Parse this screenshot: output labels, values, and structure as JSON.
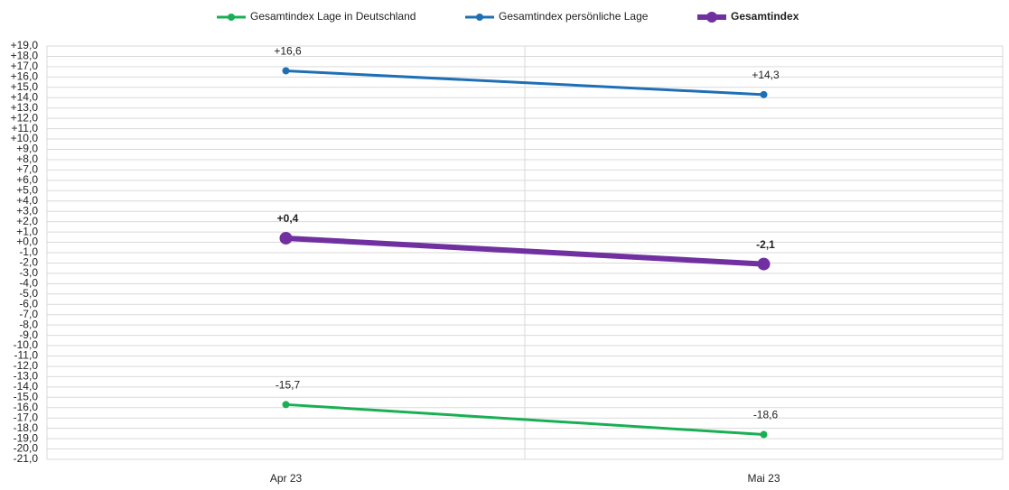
{
  "chart_data": {
    "type": "line",
    "categories": [
      "Apr 23",
      "Mai 23"
    ],
    "series": [
      {
        "name": "Gesamtindex Lage in Deutschland",
        "color": "#1aaf54",
        "values": [
          -15.7,
          -18.6
        ],
        "value_labels": [
          "-15,7",
          "-18,6"
        ]
      },
      {
        "name": "Gesamtindex persönliche Lage",
        "color": "#1f6fb5",
        "values": [
          16.6,
          14.3
        ],
        "value_labels": [
          "+16,6",
          "+14,3"
        ]
      },
      {
        "name": "Gesamtindex",
        "color": "#7030a0",
        "values": [
          0.4,
          -2.1
        ],
        "value_labels": [
          "+0,4",
          "-2,1"
        ]
      }
    ],
    "ylim": [
      -21,
      19
    ],
    "yticks": [
      {
        "value": 19,
        "label": "+19,0"
      },
      {
        "value": 18,
        "label": "+18,0"
      },
      {
        "value": 17,
        "label": "+17,0"
      },
      {
        "value": 16,
        "label": "+16,0"
      },
      {
        "value": 15,
        "label": "+15,0"
      },
      {
        "value": 14,
        "label": "+14,0"
      },
      {
        "value": 13,
        "label": "+13,0"
      },
      {
        "value": 12,
        "label": "+12,0"
      },
      {
        "value": 11,
        "label": "+11,0"
      },
      {
        "value": 10,
        "label": "+10,0"
      },
      {
        "value": 9,
        "label": "+9,0"
      },
      {
        "value": 8,
        "label": "+8,0"
      },
      {
        "value": 7,
        "label": "+7,0"
      },
      {
        "value": 6,
        "label": "+6,0"
      },
      {
        "value": 5,
        "label": "+5,0"
      },
      {
        "value": 4,
        "label": "+4,0"
      },
      {
        "value": 3,
        "label": "+3,0"
      },
      {
        "value": 2,
        "label": "+2,0"
      },
      {
        "value": 1,
        "label": "+1,0"
      },
      {
        "value": 0,
        "label": "+0,0"
      },
      {
        "value": -1,
        "label": "-1,0"
      },
      {
        "value": -2,
        "label": "-2,0"
      },
      {
        "value": -3,
        "label": "-3,0"
      },
      {
        "value": -4,
        "label": "-4,0"
      },
      {
        "value": -5,
        "label": "-5,0"
      },
      {
        "value": -6,
        "label": "-6,0"
      },
      {
        "value": -7,
        "label": "-7,0"
      },
      {
        "value": -8,
        "label": "-8,0"
      },
      {
        "value": -9,
        "label": "-9,0"
      },
      {
        "value": -10,
        "label": "-10,0"
      },
      {
        "value": -11,
        "label": "-11,0"
      },
      {
        "value": -12,
        "label": "-12,0"
      },
      {
        "value": -13,
        "label": "-13,0"
      },
      {
        "value": -14,
        "label": "-14,0"
      },
      {
        "value": -15,
        "label": "-15,0"
      },
      {
        "value": -16,
        "label": "-16,0"
      },
      {
        "value": -17,
        "label": "-17,0"
      },
      {
        "value": -18,
        "label": "-18,0"
      },
      {
        "value": -19,
        "label": "-19,0"
      },
      {
        "value": -20,
        "label": "-20,0"
      },
      {
        "value": -21,
        "label": "-21,0"
      }
    ],
    "grid": true,
    "legend": "top"
  }
}
